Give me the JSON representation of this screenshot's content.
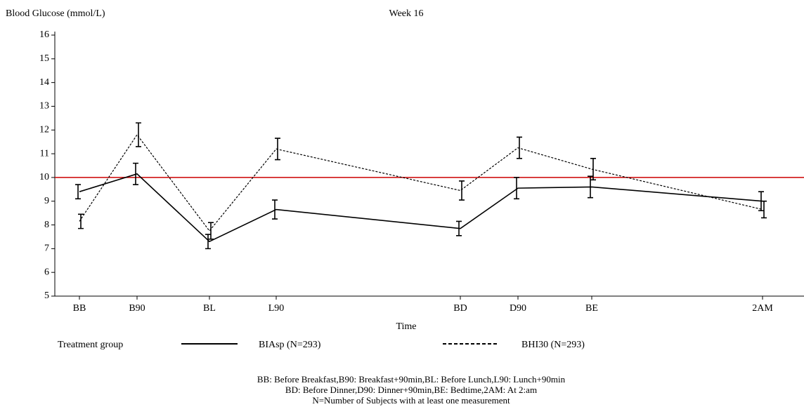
{
  "chart_data": {
    "type": "line",
    "title": "Week 16",
    "y_label": "Blood Glucose (mmol/L)",
    "x_label": "Time",
    "categories": [
      "BB",
      "B90",
      "BL",
      "L90",
      "BD",
      "D90",
      "BE",
      "2AM"
    ],
    "series": [
      {
        "name": "BIAsp (N=293)",
        "color": "#000000",
        "line_style": "solid",
        "values": [
          9.4,
          10.15,
          7.3,
          8.65,
          7.85,
          9.55,
          9.6,
          9.0
        ],
        "errors": [
          0.3,
          0.45,
          0.3,
          0.4,
          0.3,
          0.45,
          0.45,
          0.4
        ]
      },
      {
        "name": "BHI30 (N=293)",
        "color": "#000000",
        "line_style": "dashed",
        "values": [
          8.15,
          11.8,
          7.75,
          11.2,
          9.45,
          11.25,
          10.35,
          8.65
        ],
        "errors": [
          0.3,
          0.5,
          0.35,
          0.45,
          0.4,
          0.45,
          0.45,
          0.35
        ]
      }
    ],
    "ylim": [
      5,
      16
    ],
    "yticks": [
      5,
      6,
      7,
      8,
      9,
      10,
      11,
      12,
      13,
      14,
      15,
      16
    ],
    "reference_line": {
      "value": 10,
      "color": "#cc0000"
    },
    "legend_title": "Treatment group",
    "notes": [
      "BB: Before Breakfast,B90: Breakfast+90min,BL: Before Lunch,L90: Lunch+90min",
      "BD: Before Dinner,D90: Dinner+90min,BE: Bedtime,2AM: At 2:am",
      "N=Number of Subjects with at least one measurement"
    ]
  }
}
